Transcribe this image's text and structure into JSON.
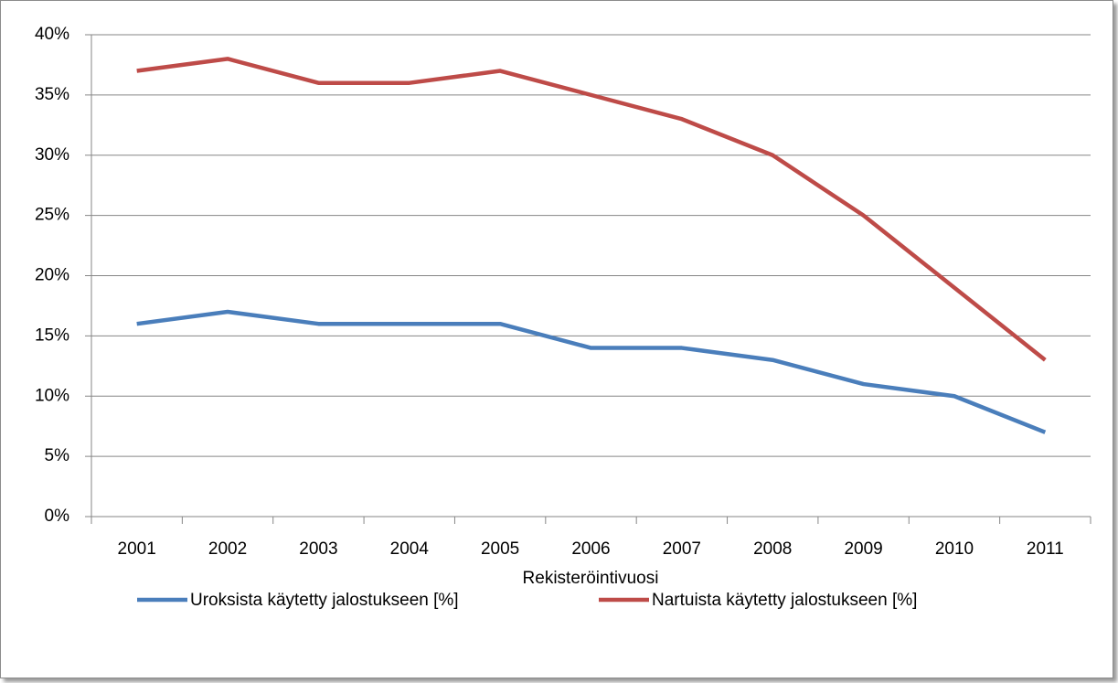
{
  "chart_data": {
    "type": "line",
    "x_label": "Rekisteröintivuosi",
    "categories": [
      "2001",
      "2002",
      "2003",
      "2004",
      "2005",
      "2006",
      "2007",
      "2008",
      "2009",
      "2010",
      "2011"
    ],
    "series": [
      {
        "name": "Uroksista käytetty jalostukseen [%]",
        "color": "#4a7ebb",
        "values": [
          16,
          17,
          16,
          16,
          16,
          14,
          14,
          13,
          11,
          10,
          7
        ]
      },
      {
        "name": "Nartuista käytetty jalostukseen [%]",
        "color": "#be4b48",
        "values": [
          37,
          38,
          36,
          36,
          37,
          35,
          33,
          30,
          25,
          19,
          13
        ]
      }
    ],
    "ylim": [
      0,
      40
    ],
    "yticks": [
      {
        "value": 0,
        "label": "0%"
      },
      {
        "value": 5,
        "label": "5%"
      },
      {
        "value": 10,
        "label": "10%"
      },
      {
        "value": 15,
        "label": "15%"
      },
      {
        "value": 20,
        "label": "20%"
      },
      {
        "value": 25,
        "label": "25%"
      },
      {
        "value": 30,
        "label": "30%"
      },
      {
        "value": 35,
        "label": "35%"
      },
      {
        "value": 40,
        "label": "40%"
      }
    ],
    "grid": true,
    "legend": "bottom"
  }
}
